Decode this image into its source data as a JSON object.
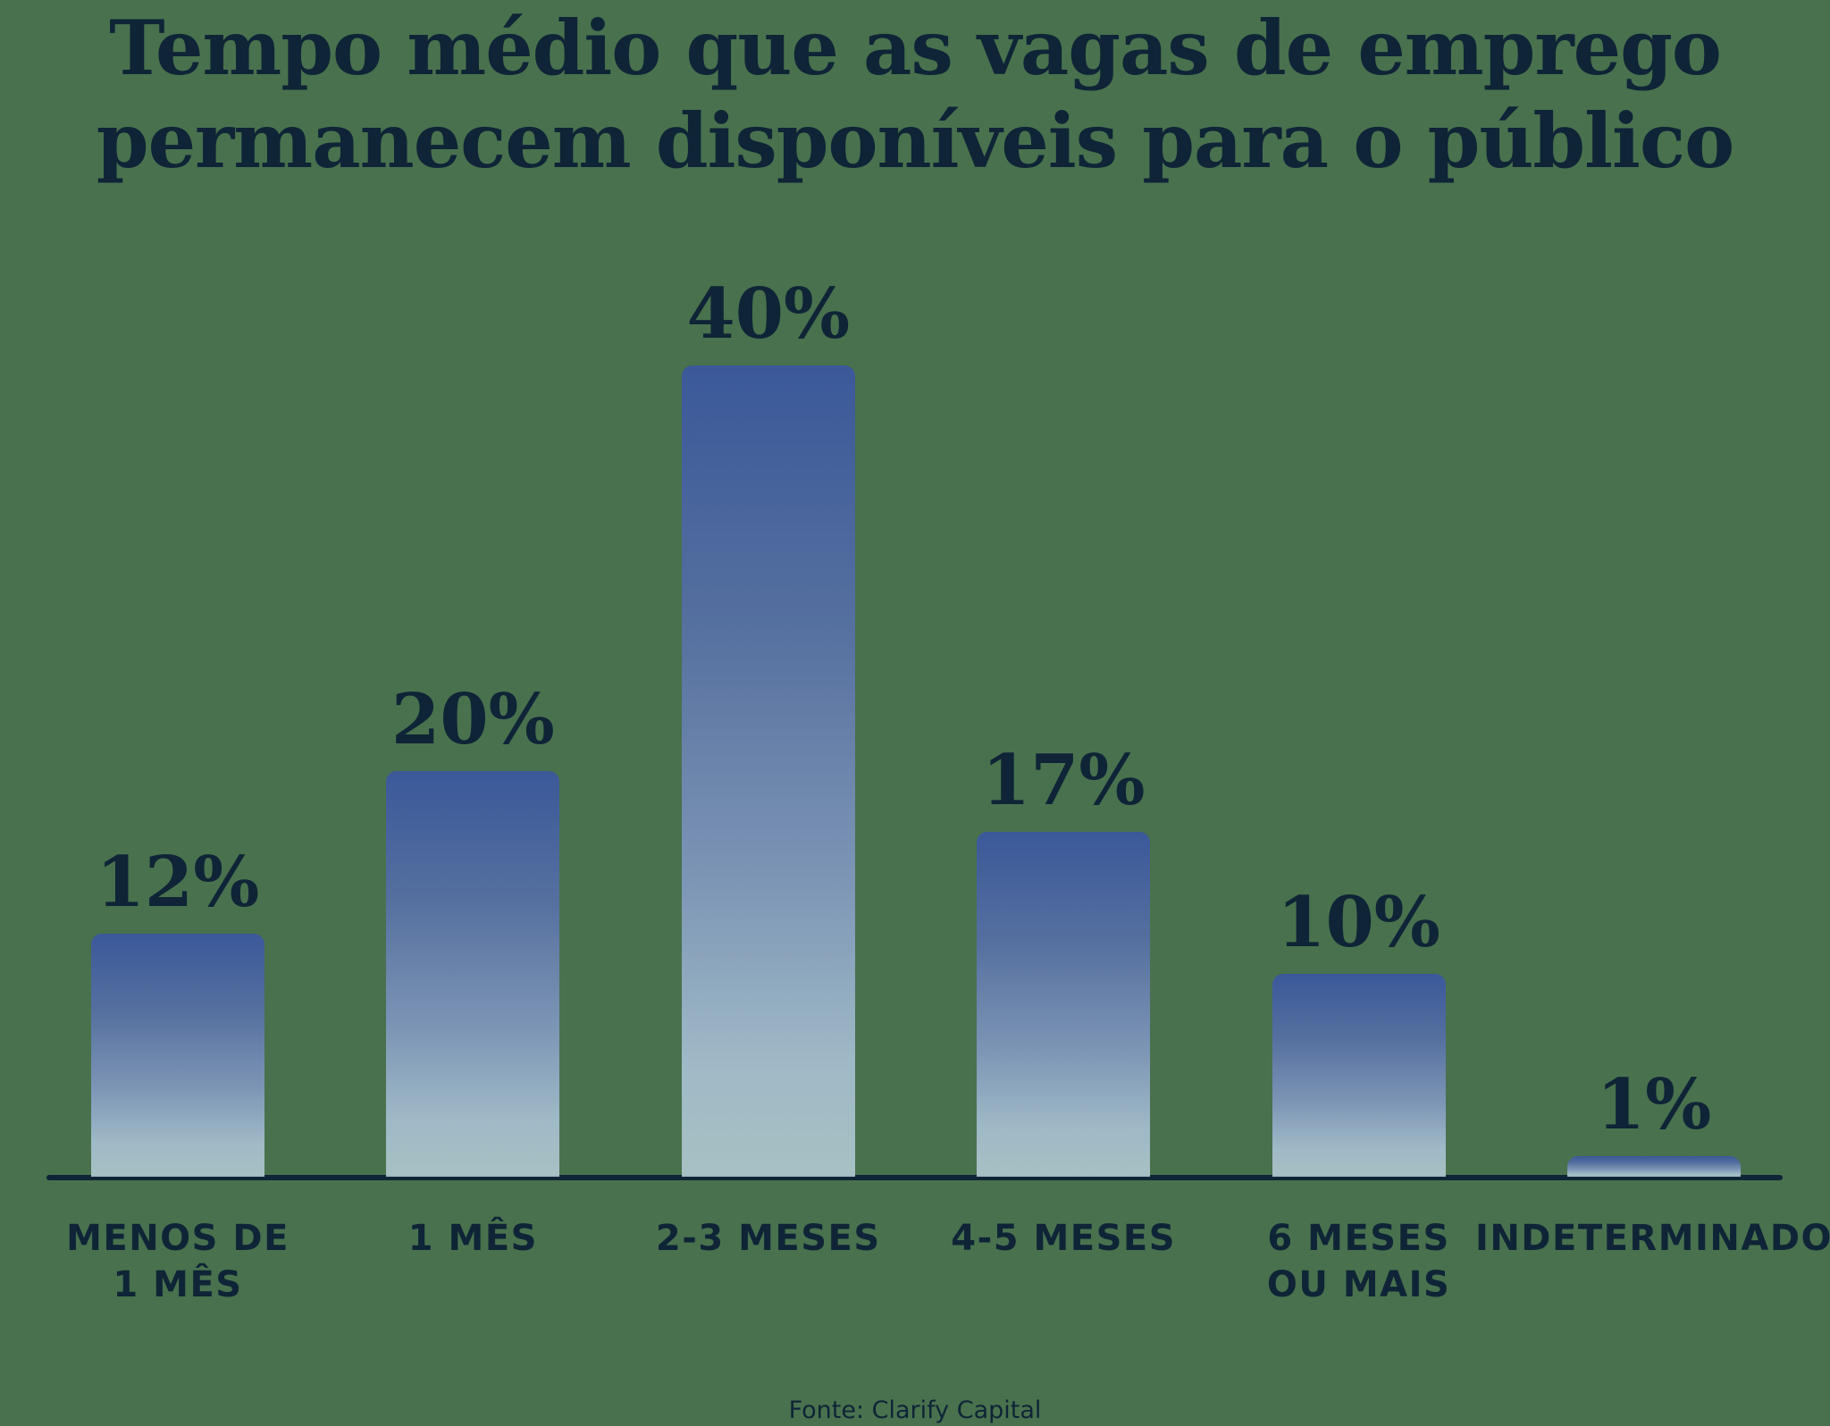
{
  "title_lines": [
    "Tempo médio que as vagas de emprego",
    "permanecem disponíveis para o público"
  ],
  "source": "Fonte: Clarify Capital",
  "colors": {
    "background": "#49714E",
    "text": "#0F2436",
    "axis": "#0F2436",
    "bar_gradient_top": "#3B5899",
    "bar_gradient_bottom": "#AFC7CD"
  },
  "chart_data": {
    "type": "bar",
    "title": "Tempo médio que as vagas de emprego permanecem disponíveis para o público",
    "categories": [
      "MENOS DE\n1 MÊS",
      "1 MÊS",
      "2-3 MESES",
      "4-5 MESES",
      "6 MESES\nOU MAIS",
      "INDETERMINADO"
    ],
    "values": [
      12,
      20,
      40,
      17,
      10,
      1
    ],
    "value_labels": [
      "12%",
      "20%",
      "40%",
      "17%",
      "10%",
      "1%"
    ],
    "xlabel": "",
    "ylabel": "",
    "ylim": [
      0,
      40
    ],
    "grid": false,
    "legend": false,
    "source": "Fonte: Clarify Capital"
  }
}
